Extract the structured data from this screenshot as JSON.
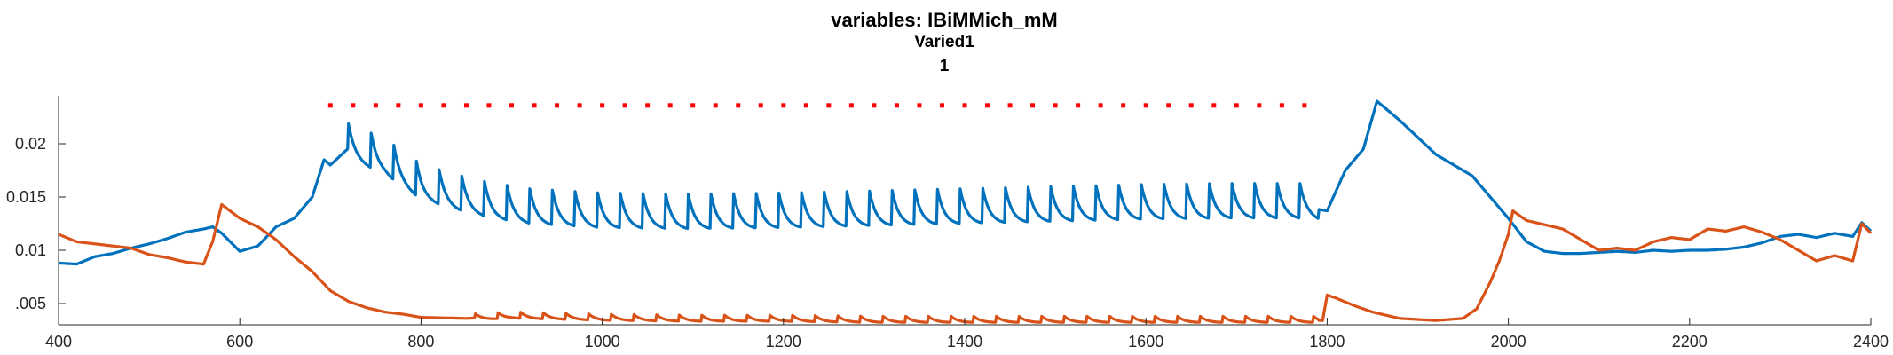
{
  "chart_data": {
    "type": "line",
    "title_lines": [
      "variables: IBiMMich_mM",
      "Varied1",
      "1"
    ],
    "xlabel": "",
    "ylabel": "",
    "xlim": [
      400,
      2400
    ],
    "ylim": [
      0.003,
      0.0245
    ],
    "xticks": [
      400,
      600,
      800,
      1000,
      1200,
      1400,
      1600,
      1800,
      2000,
      2200,
      2400
    ],
    "xtick_labels": [
      "400",
      "600",
      "800",
      "1000",
      "1200",
      "1400",
      "1600",
      "1800",
      "2000",
      "2200",
      "2400"
    ],
    "yticks": [
      0.005,
      0.01,
      0.015,
      0.02
    ],
    "ytick_labels": [
      ".005",
      "0.01",
      "0.015",
      "0.02"
    ],
    "grid": false,
    "colors": {
      "blue": "#0072BD",
      "orange": "#D95319",
      "marker": "#FF0000"
    },
    "series": [
      {
        "name": "series-blue",
        "color": "#0072BD",
        "x": [
          400,
          420,
          440,
          460,
          480,
          500,
          520,
          540,
          560,
          570,
          580,
          600,
          620,
          640,
          660,
          680,
          693,
          700,
          720,
          740,
          760,
          780,
          800,
          840,
          880,
          920,
          960,
          1000,
          1100,
          1200,
          1300,
          1400,
          1500,
          1600,
          1700,
          1780,
          1800,
          1820,
          1840,
          1855,
          1880,
          1920,
          1960,
          2000,
          2020,
          2040,
          2060,
          2080,
          2100,
          2120,
          2140,
          2160,
          2180,
          2200,
          2220,
          2240,
          2260,
          2280,
          2300,
          2320,
          2340,
          2360,
          2380,
          2390,
          2400
        ],
        "y": [
          0.0088,
          0.0087,
          0.0094,
          0.0097,
          0.0102,
          0.0106,
          0.0111,
          0.0117,
          0.012,
          0.0122,
          0.0116,
          0.0099,
          0.0104,
          0.0122,
          0.013,
          0.015,
          0.0185,
          0.018,
          0.0196,
          0.0189,
          0.0182,
          0.017,
          0.0158,
          0.0148,
          0.014,
          0.0135,
          0.0133,
          0.0131,
          0.013,
          0.0131,
          0.0133,
          0.0135,
          0.0137,
          0.0139,
          0.014,
          0.014,
          0.0137,
          0.0175,
          0.0195,
          0.024,
          0.0222,
          0.019,
          0.017,
          0.013,
          0.0108,
          0.0099,
          0.0097,
          0.0097,
          0.0098,
          0.0099,
          0.0098,
          0.01,
          0.0099,
          0.01,
          0.01,
          0.0101,
          0.0103,
          0.0107,
          0.0113,
          0.0115,
          0.0112,
          0.0116,
          0.0113,
          0.0126,
          0.0118
        ]
      },
      {
        "name": "series-orange",
        "color": "#D95319",
        "x": [
          400,
          420,
          440,
          460,
          480,
          500,
          520,
          540,
          560,
          570,
          580,
          600,
          620,
          640,
          660,
          680,
          700,
          720,
          740,
          760,
          780,
          800,
          850,
          900,
          1000,
          1100,
          1200,
          1300,
          1400,
          1500,
          1600,
          1700,
          1795,
          1800,
          1810,
          1830,
          1850,
          1880,
          1920,
          1950,
          1965,
          1980,
          1990,
          2000,
          2005,
          2020,
          2040,
          2060,
          2080,
          2100,
          2120,
          2140,
          2160,
          2180,
          2200,
          2220,
          2240,
          2260,
          2280,
          2300,
          2320,
          2340,
          2360,
          2380,
          2390,
          2400
        ],
        "y": [
          0.0115,
          0.0108,
          0.0106,
          0.0104,
          0.0102,
          0.0096,
          0.0093,
          0.0089,
          0.0087,
          0.0108,
          0.0143,
          0.013,
          0.0122,
          0.011,
          0.0094,
          0.008,
          0.0062,
          0.0052,
          0.0046,
          0.0042,
          0.004,
          0.0037,
          0.0036,
          0.0038,
          0.0036,
          0.0035,
          0.0035,
          0.0034,
          0.0034,
          0.0034,
          0.0034,
          0.0034,
          0.0034,
          0.0058,
          0.0055,
          0.0048,
          0.0042,
          0.0036,
          0.0034,
          0.0036,
          0.0045,
          0.007,
          0.009,
          0.0115,
          0.0137,
          0.0128,
          0.0124,
          0.012,
          0.011,
          0.01,
          0.0102,
          0.01,
          0.0108,
          0.0112,
          0.011,
          0.012,
          0.0118,
          0.0122,
          0.0117,
          0.011,
          0.01,
          0.009,
          0.0095,
          0.009,
          0.0125,
          0.0116
        ]
      }
    ],
    "oscillation": {
      "blue": {
        "x_start": 720,
        "x_end": 1790,
        "period": 25,
        "amplitude": 0.0034
      },
      "orange": {
        "x_start": 860,
        "x_end": 1790,
        "period": 25,
        "amplitude": 0.0006
      }
    },
    "stimulus_markers": {
      "x_start": 700,
      "x_end": 1780,
      "step": 25,
      "y": 0.0236,
      "color": "#FF0000"
    }
  }
}
